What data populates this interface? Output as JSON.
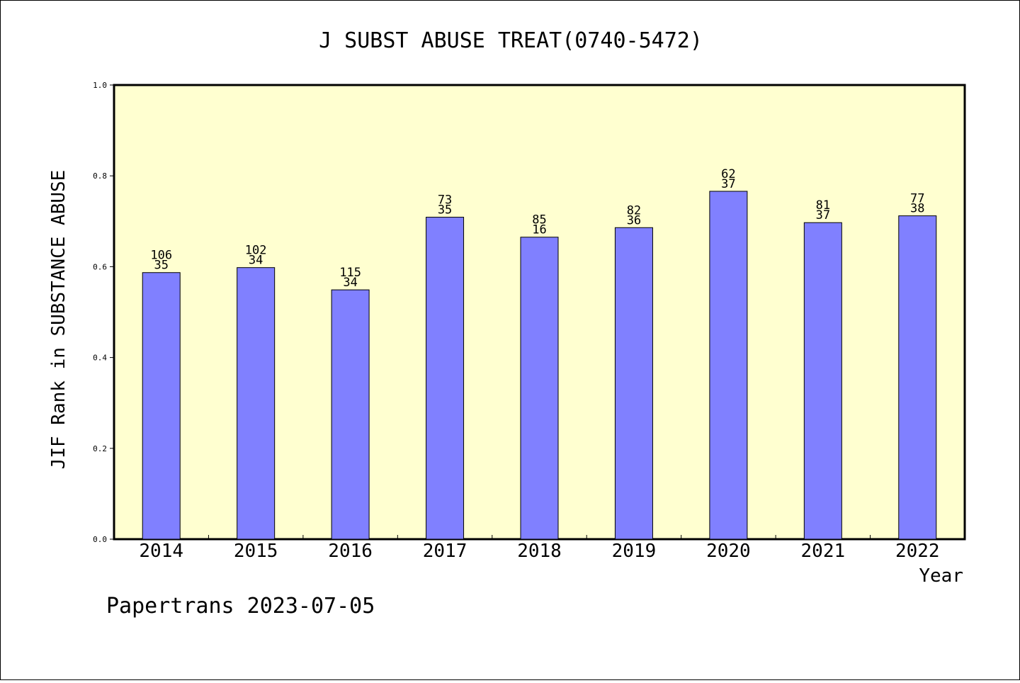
{
  "chart_data": {
    "type": "bar",
    "title": "J SUBST ABUSE TREAT(0740-5472)",
    "ylabel": "JIF Rank in SUBSTANCE ABUSE",
    "xlabel": "Year",
    "ylim": [
      0,
      1.0
    ],
    "y_ticks": [
      "0.0",
      "0.2",
      "0.4",
      "0.6",
      "0.8",
      "1.0"
    ],
    "grid": false,
    "plot_background": "#ffffd0",
    "bar_color": "#8080ff",
    "categories": [
      "2014",
      "2015",
      "2016",
      "2017",
      "2018",
      "2019",
      "2020",
      "2021",
      "2022"
    ],
    "values": [
      0.587,
      0.598,
      0.549,
      0.709,
      0.665,
      0.686,
      0.766,
      0.697,
      0.712
    ],
    "labels_top": [
      "106",
      "102",
      "115",
      "73",
      "85",
      "82",
      "62",
      "81",
      "77"
    ],
    "labels_bottom": [
      "35",
      "34",
      "34",
      "35",
      "16",
      "36",
      "37",
      "37",
      "38"
    ]
  },
  "footer": "Papertrans 2023-07-05"
}
